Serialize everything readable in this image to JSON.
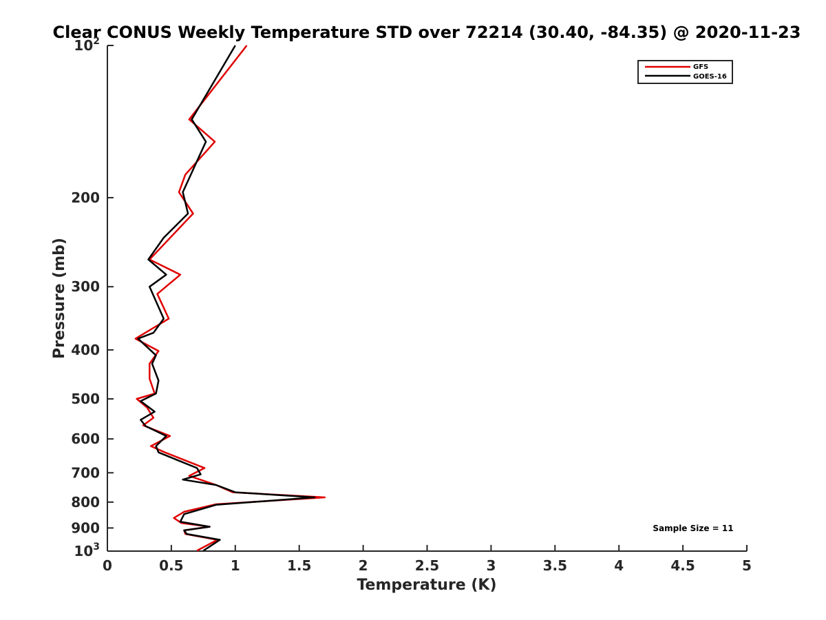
{
  "chart_data": {
    "type": "line",
    "title": "Clear CONUS Weekly Temperature STD over 72214 (30.40, -84.35) @ 2020-11-23",
    "xlabel": "Temperature (K)",
    "ylabel": "Pressure (mb)",
    "xlim": [
      0,
      5
    ],
    "ylim": [
      100,
      1000
    ],
    "yscale": "log",
    "y_reversed": true,
    "x_ticks": [
      "0",
      "0.5",
      "1",
      "1.5",
      "2",
      "2.5",
      "3",
      "3.5",
      "4",
      "4.5",
      "5"
    ],
    "y_ticks": [
      {
        "value": 100,
        "base": "10",
        "exp": "2"
      },
      {
        "value": 200,
        "label": "200"
      },
      {
        "value": 300,
        "label": "300"
      },
      {
        "value": 400,
        "label": "400"
      },
      {
        "value": 500,
        "label": "500"
      },
      {
        "value": 600,
        "label": "600"
      },
      {
        "value": 700,
        "label": "700"
      },
      {
        "value": 800,
        "label": "800"
      },
      {
        "value": 900,
        "label": "900"
      },
      {
        "value": 1000,
        "base": "10",
        "exp": "3"
      }
    ],
    "grid": false,
    "legend_position": "top-right",
    "annotation": "Sample Size = 11",
    "series": [
      {
        "name": "GFS",
        "color": "#e00000",
        "points": [
          [
            1.09,
            100
          ],
          [
            0.64,
            140
          ],
          [
            0.84,
            155
          ],
          [
            0.61,
            180
          ],
          [
            0.56,
            195
          ],
          [
            0.67,
            215
          ],
          [
            0.33,
            265
          ],
          [
            0.57,
            284
          ],
          [
            0.39,
            310
          ],
          [
            0.48,
            347
          ],
          [
            0.22,
            380
          ],
          [
            0.4,
            402
          ],
          [
            0.33,
            426
          ],
          [
            0.33,
            456
          ],
          [
            0.37,
            488
          ],
          [
            0.23,
            500
          ],
          [
            0.31,
            520
          ],
          [
            0.36,
            545
          ],
          [
            0.28,
            564
          ],
          [
            0.49,
            592
          ],
          [
            0.34,
            620
          ],
          [
            0.45,
            638
          ],
          [
            0.76,
            685
          ],
          [
            0.64,
            710
          ],
          [
            0.85,
            740
          ],
          [
            0.98,
            765
          ],
          [
            1.7,
            783
          ],
          [
            0.85,
            808
          ],
          [
            0.6,
            836
          ],
          [
            0.52,
            860
          ],
          [
            0.58,
            880
          ],
          [
            0.8,
            895
          ],
          [
            0.6,
            910
          ],
          [
            0.61,
            925
          ],
          [
            0.86,
            950
          ],
          [
            0.7,
            998
          ]
        ]
      },
      {
        "name": "GOES-16",
        "color": "#000000",
        "points": [
          [
            1.0,
            100
          ],
          [
            0.66,
            140
          ],
          [
            0.77,
            155
          ],
          [
            0.59,
            195
          ],
          [
            0.63,
            215
          ],
          [
            0.44,
            240
          ],
          [
            0.32,
            265
          ],
          [
            0.46,
            284
          ],
          [
            0.33,
            300
          ],
          [
            0.44,
            347
          ],
          [
            0.36,
            370
          ],
          [
            0.24,
            380
          ],
          [
            0.38,
            410
          ],
          [
            0.35,
            426
          ],
          [
            0.4,
            460
          ],
          [
            0.38,
            488
          ],
          [
            0.26,
            505
          ],
          [
            0.37,
            530
          ],
          [
            0.26,
            550
          ],
          [
            0.3,
            566
          ],
          [
            0.46,
            592
          ],
          [
            0.38,
            620
          ],
          [
            0.4,
            638
          ],
          [
            0.7,
            685
          ],
          [
            0.73,
            705
          ],
          [
            0.59,
            722
          ],
          [
            0.85,
            740
          ],
          [
            1.0,
            765
          ],
          [
            1.62,
            783
          ],
          [
            0.85,
            810
          ],
          [
            0.6,
            845
          ],
          [
            0.57,
            875
          ],
          [
            0.8,
            895
          ],
          [
            0.6,
            910
          ],
          [
            0.62,
            925
          ],
          [
            0.88,
            950
          ],
          [
            0.75,
            998
          ]
        ]
      }
    ]
  }
}
